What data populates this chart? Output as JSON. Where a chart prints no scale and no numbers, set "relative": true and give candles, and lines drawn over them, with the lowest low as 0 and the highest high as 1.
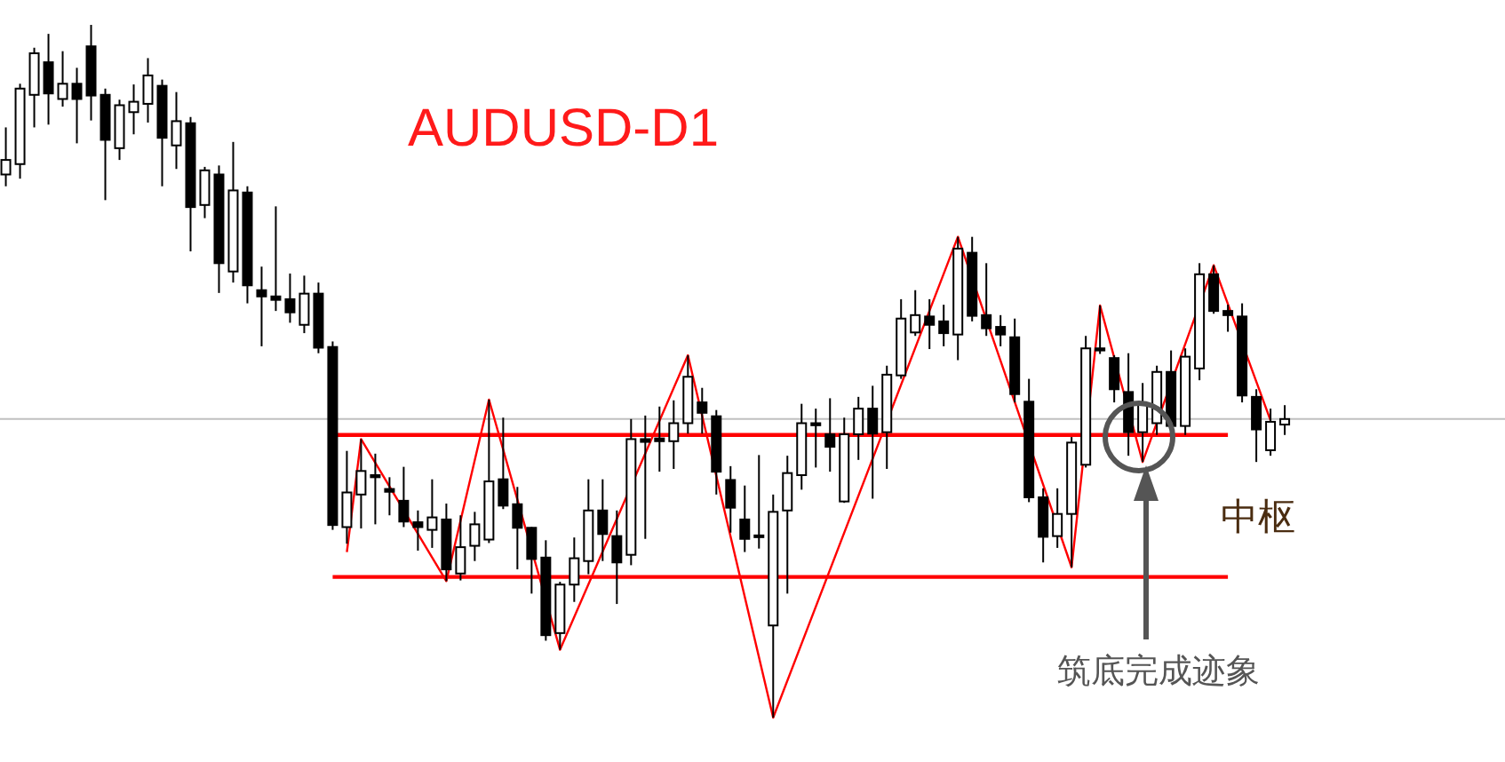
{
  "chart_data": {
    "type": "candlestick",
    "title": "AUDUSD-D1",
    "relative": true,
    "categories": [
      null,
      null,
      null,
      null,
      null,
      null,
      null,
      null,
      null,
      null,
      null,
      null,
      null,
      null,
      null,
      null,
      null,
      null,
      null,
      null,
      null,
      null,
      null,
      null,
      null,
      null,
      null,
      null,
      null,
      null,
      null,
      null,
      null,
      null,
      null,
      null,
      null,
      null,
      null,
      null,
      null,
      null,
      null,
      null,
      null,
      null,
      null,
      null,
      null,
      null,
      null,
      null,
      null,
      null,
      null,
      null,
      null,
      null,
      null,
      null,
      null,
      null,
      null,
      null,
      null,
      null,
      null,
      null,
      null,
      null,
      null,
      null,
      null,
      null,
      null,
      null,
      null,
      null,
      null,
      null,
      null,
      null,
      null,
      null,
      null,
      null,
      null,
      null,
      null,
      null,
      null
    ],
    "ohlc": [
      [
        0.784,
        0.852,
        0.767,
        0.805
      ],
      [
        0.799,
        0.915,
        0.778,
        0.908
      ],
      [
        0.899,
        0.967,
        0.852,
        0.959
      ],
      [
        0.946,
        0.987,
        0.856,
        0.901
      ],
      [
        0.893,
        0.962,
        0.882,
        0.915
      ],
      [
        0.915,
        0.938,
        0.829,
        0.893
      ],
      [
        0.969,
        1.0,
        0.862,
        0.898
      ],
      [
        0.899,
        0.908,
        0.747,
        0.834
      ],
      [
        0.822,
        0.892,
        0.805,
        0.884
      ],
      [
        0.874,
        0.914,
        0.842,
        0.889
      ],
      [
        0.886,
        0.952,
        0.859,
        0.927
      ],
      [
        0.912,
        0.921,
        0.767,
        0.837
      ],
      [
        0.826,
        0.903,
        0.792,
        0.861
      ],
      [
        0.858,
        0.867,
        0.673,
        0.737
      ],
      [
        0.74,
        0.795,
        0.721,
        0.79
      ],
      [
        0.784,
        0.797,
        0.613,
        0.656
      ],
      [
        0.644,
        0.831,
        0.628,
        0.761
      ],
      [
        0.758,
        0.767,
        0.598,
        0.624
      ],
      [
        0.617,
        0.651,
        0.536,
        0.608
      ],
      [
        0.608,
        0.738,
        0.587,
        0.603
      ],
      [
        0.604,
        0.641,
        0.57,
        0.585
      ],
      [
        0.567,
        0.638,
        0.555,
        0.612
      ],
      [
        0.612,
        0.628,
        0.526,
        0.534
      ],
      [
        0.535,
        0.543,
        0.271,
        0.278
      ],
      [
        0.275,
        0.385,
        0.251,
        0.325
      ],
      [
        0.322,
        0.402,
        0.273,
        0.356
      ],
      [
        0.35,
        0.381,
        0.279,
        0.347
      ],
      [
        0.33,
        0.347,
        0.292,
        0.326
      ],
      [
        0.313,
        0.362,
        0.275,
        0.283
      ],
      [
        0.282,
        0.299,
        0.241,
        0.275
      ],
      [
        0.271,
        0.344,
        0.245,
        0.289
      ],
      [
        0.286,
        0.309,
        0.197,
        0.214
      ],
      [
        0.208,
        0.292,
        0.198,
        0.246
      ],
      [
        0.248,
        0.297,
        0.226,
        0.279
      ],
      [
        0.257,
        0.459,
        0.252,
        0.341
      ],
      [
        0.344,
        0.433,
        0.301,
        0.306
      ],
      [
        0.308,
        0.333,
        0.214,
        0.274
      ],
      [
        0.274,
        0.275,
        0.179,
        0.229
      ],
      [
        0.231,
        0.256,
        0.111,
        0.119
      ],
      [
        0.122,
        0.196,
        0.098,
        0.192
      ],
      [
        0.192,
        0.26,
        0.167,
        0.23
      ],
      [
        0.226,
        0.344,
        0.207,
        0.299
      ],
      [
        0.299,
        0.344,
        0.226,
        0.265
      ],
      [
        0.262,
        0.299,
        0.164,
        0.224
      ],
      [
        0.235,
        0.431,
        0.22,
        0.402
      ],
      [
        0.402,
        0.436,
        0.258,
        0.398
      ],
      [
        0.403,
        0.449,
        0.355,
        0.399
      ],
      [
        0.399,
        0.458,
        0.359,
        0.425
      ],
      [
        0.425,
        0.523,
        0.41,
        0.492
      ],
      [
        0.455,
        0.476,
        0.41,
        0.44
      ],
      [
        0.435,
        0.444,
        0.322,
        0.355
      ],
      [
        0.343,
        0.363,
        0.267,
        0.303
      ],
      [
        0.286,
        0.335,
        0.239,
        0.258
      ],
      [
        0.263,
        0.379,
        0.244,
        0.261
      ],
      [
        0.133,
        0.322,
        0.0,
        0.297
      ],
      [
        0.299,
        0.378,
        0.179,
        0.353
      ],
      [
        0.35,
        0.453,
        0.329,
        0.425
      ],
      [
        0.425,
        0.446,
        0.361,
        0.422
      ],
      [
        0.409,
        0.461,
        0.355,
        0.391
      ],
      [
        0.312,
        0.433,
        0.31,
        0.409
      ],
      [
        0.409,
        0.463,
        0.372,
        0.446
      ],
      [
        0.446,
        0.479,
        0.316,
        0.41
      ],
      [
        0.412,
        0.508,
        0.359,
        0.495
      ],
      [
        0.494,
        0.604,
        0.489,
        0.576
      ],
      [
        0.556,
        0.617,
        0.551,
        0.581
      ],
      [
        0.579,
        0.604,
        0.532,
        0.567
      ],
      [
        0.572,
        0.596,
        0.536,
        0.555
      ],
      [
        0.553,
        0.694,
        0.516,
        0.677
      ],
      [
        0.671,
        0.694,
        0.572,
        0.58
      ],
      [
        0.581,
        0.656,
        0.551,
        0.562
      ],
      [
        0.564,
        0.581,
        0.536,
        0.553
      ],
      [
        0.549,
        0.576,
        0.455,
        0.467
      ],
      [
        0.456,
        0.489,
        0.311,
        0.318
      ],
      [
        0.318,
        0.331,
        0.224,
        0.261
      ],
      [
        0.262,
        0.331,
        0.245,
        0.294
      ],
      [
        0.294,
        0.405,
        0.217,
        0.397
      ],
      [
        0.365,
        0.551,
        0.361,
        0.533
      ],
      [
        0.533,
        0.595,
        0.525,
        0.53
      ],
      [
        0.519,
        0.523,
        0.455,
        0.474
      ],
      [
        0.47,
        0.526,
        0.378,
        0.412
      ],
      [
        0.412,
        0.483,
        0.369,
        0.453
      ],
      [
        0.425,
        0.508,
        0.408,
        0.499
      ],
      [
        0.499,
        0.53,
        0.403,
        0.421
      ],
      [
        0.421,
        0.533,
        0.408,
        0.521
      ],
      [
        0.504,
        0.656,
        0.487,
        0.64
      ],
      [
        0.64,
        0.653,
        0.583,
        0.587
      ],
      [
        0.587,
        0.596,
        0.557,
        0.581
      ],
      [
        0.579,
        0.598,
        0.455,
        0.465
      ],
      [
        0.463,
        0.474,
        0.369,
        0.416
      ],
      [
        0.386,
        0.446,
        0.378,
        0.427
      ],
      [
        0.423,
        0.451,
        0.408,
        0.431
      ]
    ],
    "series": [
      {
        "type": "line",
        "color": "#ff0000",
        "values": [
          null,
          null,
          null,
          null,
          null,
          null,
          null,
          null,
          null,
          null,
          null,
          null,
          null,
          null,
          null,
          null,
          null,
          null,
          null,
          null,
          null,
          null,
          null,
          null,
          0.239,
          0.402,
          null,
          null,
          null,
          null,
          null,
          0.197,
          null,
          null,
          0.459,
          null,
          null,
          null,
          null,
          0.098,
          null,
          null,
          null,
          null,
          null,
          null,
          null,
          null,
          0.523,
          null,
          null,
          null,
          null,
          null,
          0.0,
          null,
          null,
          null,
          null,
          null,
          null,
          null,
          null,
          null,
          null,
          null,
          null,
          0.694,
          null,
          null,
          null,
          null,
          null,
          null,
          null,
          0.217,
          null,
          0.595,
          null,
          null,
          0.369,
          null,
          null,
          null,
          null,
          0.653,
          null,
          null,
          null,
          0.429,
          null
        ]
      }
    ],
    "ref_lines": [
      {
        "axis": "y",
        "value": 0.408,
        "color": "#ff0000"
      },
      {
        "axis": "y",
        "value": 0.203,
        "color": "#ff0000"
      },
      {
        "axis": "y",
        "value": 0.431,
        "color": "#c0c0c0"
      }
    ],
    "annotations": [
      "中枢",
      "筑底完成迹象"
    ]
  }
}
